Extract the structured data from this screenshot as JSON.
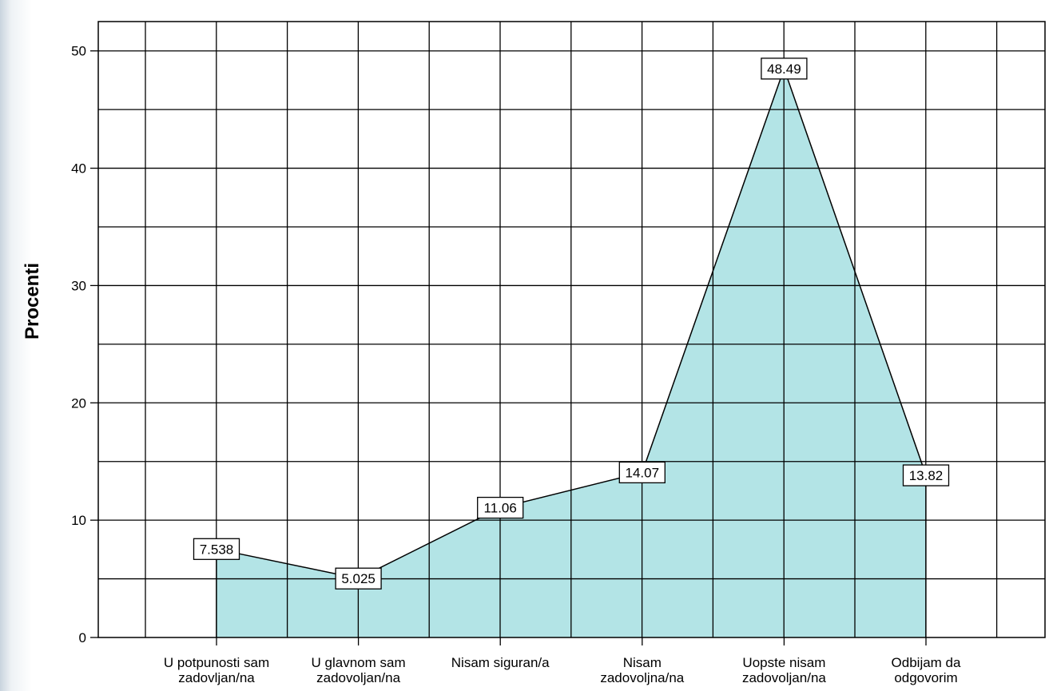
{
  "chart_data": {
    "type": "area",
    "categories": [
      [
        "U potpunosti sam",
        "zadovljan/na"
      ],
      [
        "U glavnom sam",
        "zadovoljan/na"
      ],
      [
        "Nisam siguran/a"
      ],
      [
        "Nisam",
        "zadovoljna/na"
      ],
      [
        "Uopste nisam",
        "zadovoljan/na"
      ],
      [
        "Odbijam da",
        "odgovorim"
      ]
    ],
    "values": [
      7.538,
      5.025,
      11.06,
      14.07,
      48.49,
      13.82
    ],
    "data_labels": [
      "7.538",
      "5.025",
      "11.06",
      "14.07",
      "48.49",
      "13.82"
    ],
    "ylabel": "Procenti",
    "ylim": [
      0,
      52.5
    ],
    "yticks": [
      0,
      10,
      20,
      30,
      40,
      50
    ],
    "grid": true,
    "colors": {
      "fill": "#b3e4e6",
      "line": "#000000",
      "grid": "#000000"
    }
  }
}
